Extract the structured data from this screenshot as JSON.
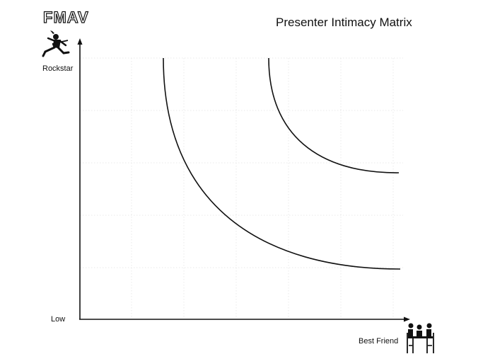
{
  "logo": {
    "text": "FMAV"
  },
  "title": "Presenter Intimacy Matrix",
  "axes": {
    "y_top_label": "Rockstar",
    "origin_label": "Low",
    "x_right_label": "Best Friend"
  },
  "icons": {
    "y_axis": "rockstar-guitarist-icon",
    "x_axis": "friends-at-table-icon"
  },
  "colors": {
    "ink": "#111111",
    "grid": "#e4e4e4",
    "background": "#ffffff"
  },
  "grid": {
    "visible": true,
    "style": "dotted"
  },
  "curves": [
    {
      "id": "inner-curve",
      "shape": "concave-up decreasing"
    },
    {
      "id": "outer-curve",
      "shape": "concave-up decreasing"
    }
  ]
}
